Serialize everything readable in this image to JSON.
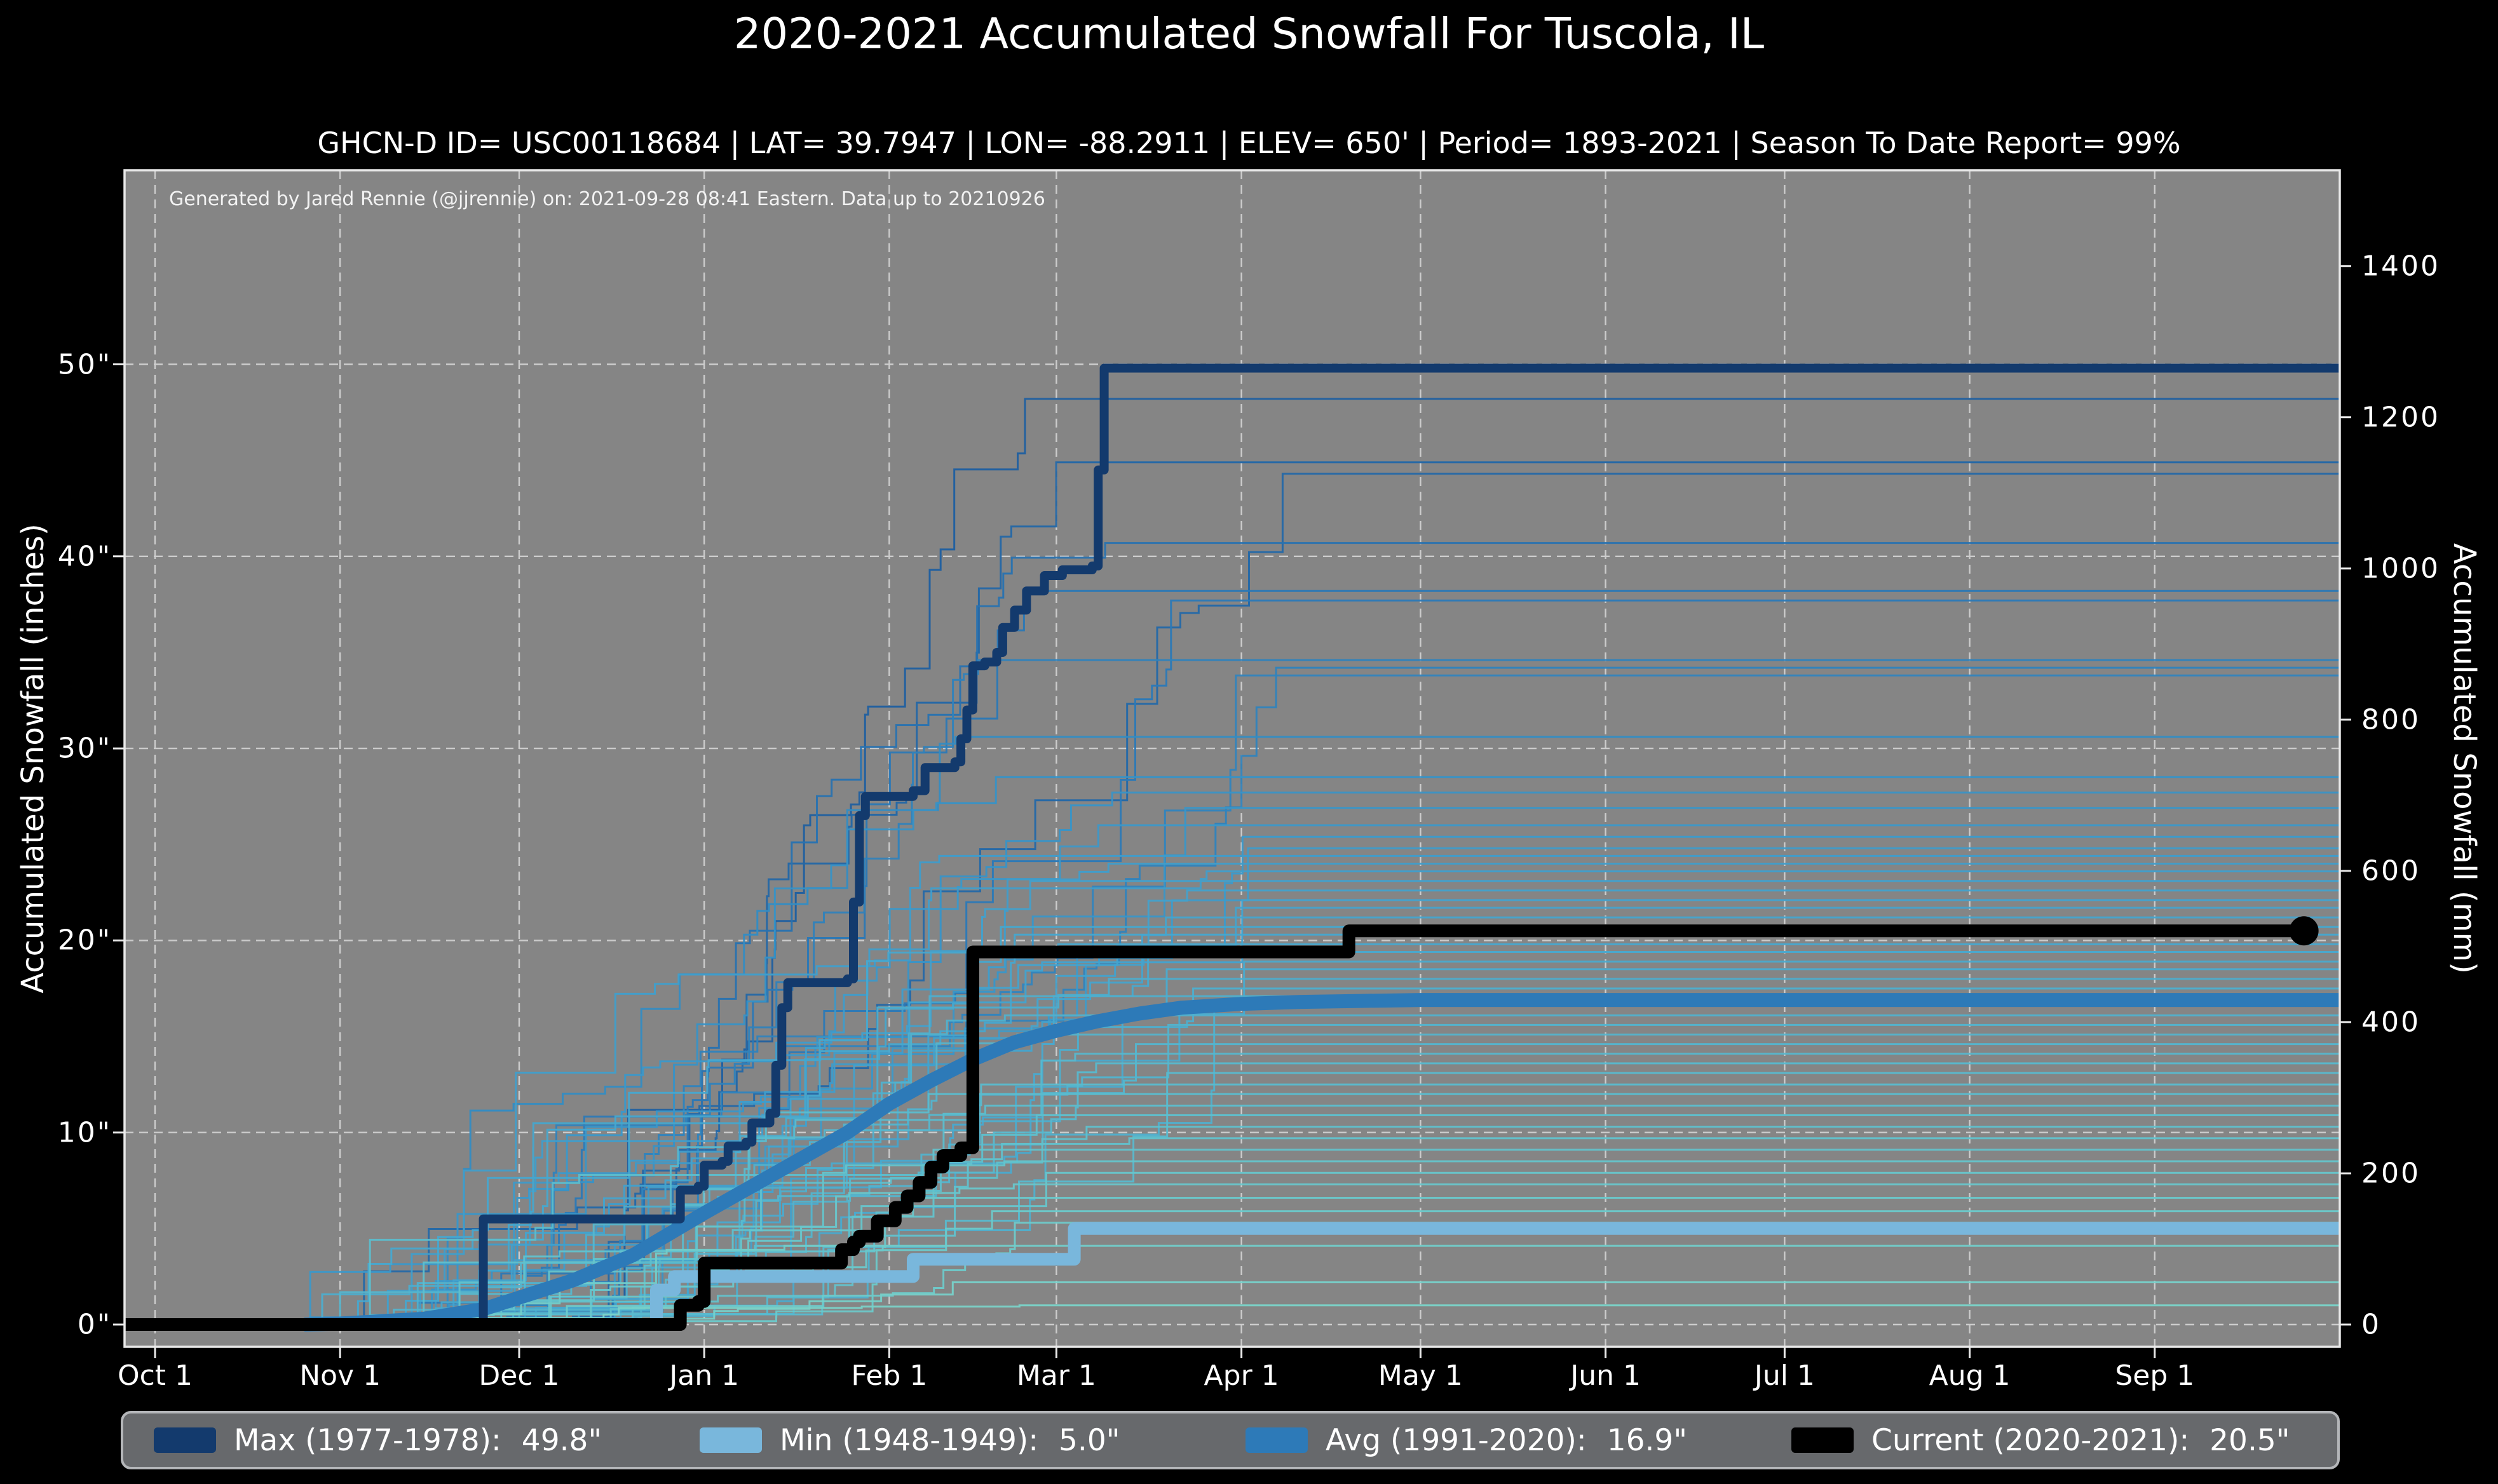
{
  "title": "2020-2021 Accumulated Snowfall For Tuscola, IL",
  "subtitle": "GHCN-D ID= USC00118684 | LAT= 39.7947 | LON= -88.2911 | ELEV= 650' | Period= 1893-2021 | Season To Date Report= 99%",
  "attribution": "Generated by Jared Rennie (@jjrennie) on: 2021-09-28 08:41 Eastern. Data up to 20210926",
  "axes": {
    "x": {
      "tick_labels": [
        "Oct 1",
        "Nov 1",
        "Dec 1",
        "Jan 1",
        "Feb 1",
        "Mar 1",
        "Apr 1",
        "May 1",
        "Jun 1",
        "Jul 1",
        "Aug 1",
        "Sep 1"
      ],
      "tick_days": [
        0,
        31,
        61,
        92,
        123,
        151,
        182,
        212,
        243,
        273,
        304,
        335
      ]
    },
    "y_left": {
      "label": "Accumulated Snowfall (inches)",
      "tick_labels": [
        "0\"",
        "10\"",
        "20\"",
        "30\"",
        "40\"",
        "50\""
      ],
      "tick_values": [
        0,
        10,
        20,
        30,
        40,
        50
      ]
    },
    "y_right": {
      "label": "Accumulated Snowfall (mm)",
      "tick_labels": [
        "0",
        "200",
        "400",
        "600",
        "800",
        "1000",
        "1200",
        "1400"
      ],
      "tick_values": [
        0,
        200,
        400,
        600,
        800,
        1000,
        1200,
        1400
      ]
    }
  },
  "legend": {
    "items": [
      {
        "key": "max",
        "label": "Max (1977-1978):",
        "value": "49.8\"",
        "color": "#133a6d"
      },
      {
        "key": "min",
        "label": "Min (1948-1949):",
        "value": "5.0\"",
        "color": "#79b7dc"
      },
      {
        "key": "avg",
        "label": "Avg (1991-2020):",
        "value": "16.9\"",
        "color": "#2d7ab8"
      },
      {
        "key": "current",
        "label": "Current (2020-2021):",
        "value": "20.5\"",
        "color": "#000000"
      }
    ]
  },
  "colors": {
    "background": "#000000",
    "plot_background": "#858585",
    "grid": "#d9d9d9",
    "spine": "#e9e9e9",
    "text": "#ffffff",
    "max_line": "#133a6d",
    "min_line": "#79b7dc",
    "avg_line": "#2d7ab8",
    "current_line": "#000000",
    "legend_background": "#67696c",
    "legend_border": "#b4b6b9",
    "ensemble_ramp": [
      "#7ad2c8",
      "#5fc0cc",
      "#47a8cf",
      "#3590c6",
      "#2a77b5",
      "#1f5fa0"
    ]
  },
  "chart_data": {
    "type": "line",
    "x_unit": "days since Oct 1",
    "x_range_days": [
      0,
      366
    ],
    "ylim_inches": [
      -1.1,
      60.1
    ],
    "grid": "dashed white, months vertical, 10-inch horizontal",
    "legend_position": "bottom strip",
    "series": [
      {
        "name": "Max (1977-1978)",
        "total_in": 49.8,
        "style": "step",
        "color_ref": "max_line",
        "width": 14,
        "points": [
          [
            -5,
            0
          ],
          [
            54,
            0
          ],
          [
            55,
            5.5
          ],
          [
            87,
            5.5
          ],
          [
            88,
            7.0
          ],
          [
            91,
            7.2
          ],
          [
            92,
            8.3
          ],
          [
            95,
            8.5
          ],
          [
            96,
            9.3
          ],
          [
            99,
            9.5
          ],
          [
            100,
            10.5
          ],
          [
            103,
            11.0
          ],
          [
            104,
            13.5
          ],
          [
            105,
            16.5
          ],
          [
            106,
            17.8
          ],
          [
            116,
            18.0
          ],
          [
            117,
            22.0
          ],
          [
            118,
            26.5
          ],
          [
            119,
            27.5
          ],
          [
            127,
            27.8
          ],
          [
            129,
            29.0
          ],
          [
            134,
            29.3
          ],
          [
            135,
            30.5
          ],
          [
            136,
            32.0
          ],
          [
            137,
            34.3
          ],
          [
            139,
            34.5
          ],
          [
            141,
            35.0
          ],
          [
            142,
            36.3
          ],
          [
            144,
            37.2
          ],
          [
            146,
            38.2
          ],
          [
            149,
            39.0
          ],
          [
            152,
            39.3
          ],
          [
            157,
            39.5
          ],
          [
            158,
            44.5
          ],
          [
            159,
            49.8
          ],
          [
            366,
            49.8
          ]
        ]
      },
      {
        "name": "Min (1948-1949)",
        "total_in": 5.0,
        "style": "step",
        "color_ref": "min_line",
        "width": 20,
        "points": [
          [
            -5,
            0
          ],
          [
            83,
            0
          ],
          [
            84,
            1.8
          ],
          [
            87,
            2.5
          ],
          [
            126,
            2.5
          ],
          [
            127,
            3.4
          ],
          [
            153,
            3.4
          ],
          [
            154,
            5.0
          ],
          [
            366,
            5.0
          ]
        ]
      },
      {
        "name": "Avg (1991-2020)",
        "total_in": 16.9,
        "style": "smooth",
        "color_ref": "avg_line",
        "width": 22,
        "points": [
          [
            25,
            0
          ],
          [
            31,
            0.05
          ],
          [
            45,
            0.3
          ],
          [
            55,
            0.8
          ],
          [
            61,
            1.4
          ],
          [
            70,
            2.3
          ],
          [
            80,
            3.6
          ],
          [
            92,
            5.8
          ],
          [
            100,
            7.2
          ],
          [
            108,
            8.6
          ],
          [
            116,
            10.0
          ],
          [
            123,
            11.5
          ],
          [
            130,
            12.7
          ],
          [
            137,
            13.8
          ],
          [
            144,
            14.7
          ],
          [
            151,
            15.3
          ],
          [
            158,
            15.8
          ],
          [
            165,
            16.2
          ],
          [
            172,
            16.5
          ],
          [
            182,
            16.7
          ],
          [
            192,
            16.8
          ],
          [
            202,
            16.85
          ],
          [
            212,
            16.9
          ],
          [
            366,
            16.9
          ]
        ]
      },
      {
        "name": "Current (2020-2021)",
        "total_in": 20.5,
        "style": "step",
        "color_ref": "current_line",
        "width": 20,
        "end_marker": true,
        "end_day": 360,
        "points": [
          [
            -5,
            0
          ],
          [
            87,
            0
          ],
          [
            88,
            1.0
          ],
          [
            91,
            1.2
          ],
          [
            92,
            3.2
          ],
          [
            114,
            3.2
          ],
          [
            115,
            3.9
          ],
          [
            117,
            4.3
          ],
          [
            118,
            4.6
          ],
          [
            121,
            5.4
          ],
          [
            124,
            6.1
          ],
          [
            126,
            6.7
          ],
          [
            128,
            7.4
          ],
          [
            130,
            8.2
          ],
          [
            132,
            8.8
          ],
          [
            135,
            9.2
          ],
          [
            137,
            19.4
          ],
          [
            199,
            19.4
          ],
          [
            200,
            20.5
          ],
          [
            360,
            20.5
          ]
        ]
      }
    ],
    "ensemble": {
      "description": "One thin step line per season 1893-2021; approximate end-of-season totals in inches, colored light teal (low) to dark blue (high)",
      "season_totals_in": [
        48.2,
        44.9,
        44.3,
        40.7,
        38.2,
        37.7,
        34.6,
        34.2,
        33.8,
        30.6,
        28.5,
        27.7,
        26.9,
        26.0,
        25.4,
        24.8,
        24.4,
        24.0,
        23.6,
        23.1,
        22.6,
        22.1,
        21.7,
        21.2,
        20.7,
        20.3,
        19.8,
        19.4,
        18.9,
        18.5,
        18.0,
        17.5,
        17.1,
        16.6,
        16.1,
        15.6,
        15.1,
        14.6,
        14.1,
        13.6,
        13.1,
        12.5,
        12.0,
        11.4,
        10.9,
        10.3,
        9.7,
        9.1,
        8.5,
        7.9,
        7.3,
        6.6,
        5.9,
        5.3,
        4.1,
        2.2,
        1.0
      ]
    }
  }
}
